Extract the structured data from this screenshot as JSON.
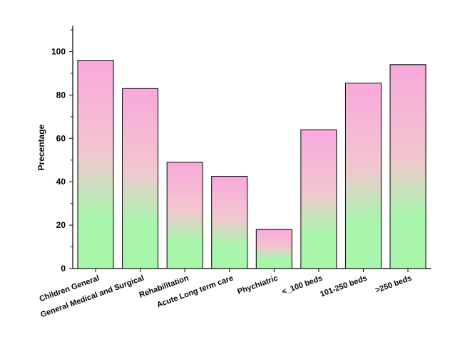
{
  "chart_data": {
    "type": "bar",
    "title": "",
    "xlabel": "",
    "ylabel": "Precentage",
    "ylim": [
      0,
      112
    ],
    "yticks": [
      0,
      20,
      40,
      60,
      80,
      100
    ],
    "grid": false,
    "categories": [
      "Children General",
      "General Medical and Surgical",
      "Rehabilitation",
      "Acute Long term care",
      "Phychiatric",
      "<_100 beds",
      "101-250 beds",
      ">250 beds"
    ],
    "values": [
      96,
      83,
      49,
      42.5,
      18,
      64,
      85.5,
      94
    ],
    "colors": {
      "bar_top": "#f9a8dc",
      "bar_mid": "#f2c6cf",
      "bar_bottom": "#a8f5ac",
      "bar_edge": "#000000"
    }
  }
}
